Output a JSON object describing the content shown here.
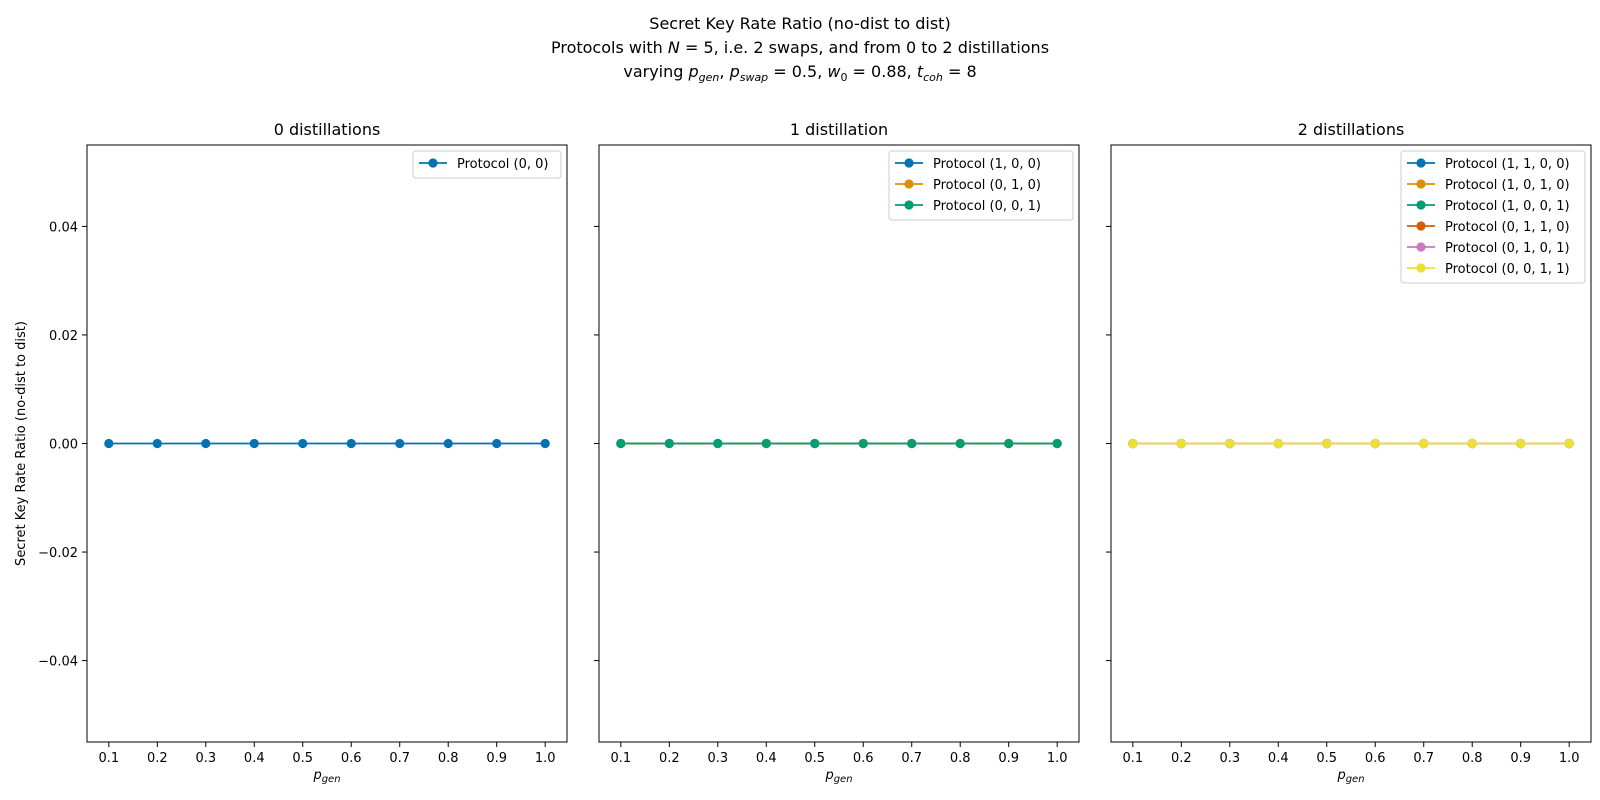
{
  "figure": {
    "title_lines": [
      "Secret Key Rate Ratio (no-dist to dist)",
      "Protocols with N = 5, i.e. 2 swaps, and from 0 to 2 distillations",
      "varying p_gen, p_swap = 0.5, w_0 = 0.88, t_coh = 8"
    ]
  },
  "chart_data": [
    {
      "type": "line",
      "title": "0 distillations",
      "xlabel": "p_gen",
      "ylabel": "Secret Key Rate Ratio (no-dist to dist)",
      "x": [
        0.1,
        0.2,
        0.3,
        0.4,
        0.5,
        0.6,
        0.7,
        0.8,
        0.9,
        1.0
      ],
      "x_tick_labels": [
        "0.1",
        "0.2",
        "0.3",
        "0.4",
        "0.5",
        "0.6",
        "0.7",
        "0.8",
        "0.9",
        "1.0"
      ],
      "y_tick_values": [
        -0.04,
        -0.02,
        0.0,
        0.02,
        0.04
      ],
      "y_tick_labels": [
        "−0.04",
        "−0.02",
        "0.00",
        "0.02",
        "0.04"
      ],
      "xlim": [
        0.055,
        1.045
      ],
      "ylim": [
        -0.055,
        0.055
      ],
      "legend": "top-right",
      "grid": false,
      "series": [
        {
          "name": "Protocol (0, 0)",
          "color": "#0173b2",
          "values": [
            0,
            0,
            0,
            0,
            0,
            0,
            0,
            0,
            0,
            0
          ]
        }
      ]
    },
    {
      "type": "line",
      "title": "1 distillation",
      "xlabel": "p_gen",
      "ylabel": "",
      "x": [
        0.1,
        0.2,
        0.3,
        0.4,
        0.5,
        0.6,
        0.7,
        0.8,
        0.9,
        1.0
      ],
      "x_tick_labels": [
        "0.1",
        "0.2",
        "0.3",
        "0.4",
        "0.5",
        "0.6",
        "0.7",
        "0.8",
        "0.9",
        "1.0"
      ],
      "y_tick_values": [
        -0.04,
        -0.02,
        0.0,
        0.02,
        0.04
      ],
      "y_tick_labels": [],
      "xlim": [
        0.055,
        1.045
      ],
      "ylim": [
        -0.055,
        0.055
      ],
      "legend": "top-right",
      "grid": false,
      "series": [
        {
          "name": "Protocol (1, 0, 0)",
          "color": "#0173b2",
          "values": [
            0,
            0,
            0,
            0,
            0,
            0,
            0,
            0,
            0,
            0
          ]
        },
        {
          "name": "Protocol (0, 1, 0)",
          "color": "#de8f05",
          "values": [
            0,
            0,
            0,
            0,
            0,
            0,
            0,
            0,
            0,
            0
          ]
        },
        {
          "name": "Protocol (0, 0, 1)",
          "color": "#029e73",
          "values": [
            0,
            0,
            0,
            0,
            0,
            0,
            0,
            0,
            0,
            0
          ]
        }
      ]
    },
    {
      "type": "line",
      "title": "2 distillations",
      "xlabel": "p_gen",
      "ylabel": "",
      "x": [
        0.1,
        0.2,
        0.3,
        0.4,
        0.5,
        0.6,
        0.7,
        0.8,
        0.9,
        1.0
      ],
      "x_tick_labels": [
        "0.1",
        "0.2",
        "0.3",
        "0.4",
        "0.5",
        "0.6",
        "0.7",
        "0.8",
        "0.9",
        "1.0"
      ],
      "y_tick_values": [
        -0.04,
        -0.02,
        0.0,
        0.02,
        0.04
      ],
      "y_tick_labels": [],
      "xlim": [
        0.055,
        1.045
      ],
      "ylim": [
        -0.055,
        0.055
      ],
      "legend": "top-right",
      "grid": false,
      "series": [
        {
          "name": "Protocol (1, 1, 0, 0)",
          "color": "#0173b2",
          "values": [
            0,
            0,
            0,
            0,
            0,
            0,
            0,
            0,
            0,
            0
          ]
        },
        {
          "name": "Protocol (1, 0, 1, 0)",
          "color": "#de8f05",
          "values": [
            0,
            0,
            0,
            0,
            0,
            0,
            0,
            0,
            0,
            0
          ]
        },
        {
          "name": "Protocol (1, 0, 0, 1)",
          "color": "#029e73",
          "values": [
            0,
            0,
            0,
            0,
            0,
            0,
            0,
            0,
            0,
            0
          ]
        },
        {
          "name": "Protocol (0, 1, 1, 0)",
          "color": "#d55e00",
          "values": [
            0,
            0,
            0,
            0,
            0,
            0,
            0,
            0,
            0,
            0
          ]
        },
        {
          "name": "Protocol (0, 1, 0, 1)",
          "color": "#cc78bc",
          "values": [
            0,
            0,
            0,
            0,
            0,
            0,
            0,
            0,
            0,
            0
          ]
        },
        {
          "name": "Protocol (0, 0, 1, 1)",
          "color": "#ece133",
          "values": [
            0,
            0,
            0,
            0,
            0,
            0,
            0,
            0,
            0,
            0
          ]
        }
      ]
    }
  ]
}
